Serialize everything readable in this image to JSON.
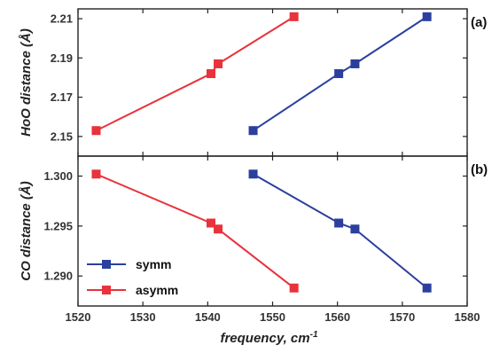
{
  "chart_data": {
    "type": "line",
    "x_axis": {
      "label": "frequency, cm",
      "label_superscript": "-1",
      "range": [
        1520,
        1580
      ],
      "ticks": [
        "1520",
        "1530",
        "1540",
        "1550",
        "1560",
        "1570",
        "1580"
      ]
    },
    "panels": [
      {
        "id": "a",
        "panel_label": "(a)",
        "ylabel": "HoO distance (Å)",
        "ylim": [
          2.14,
          2.215
        ],
        "yticks": [
          "2.15",
          "2.17",
          "2.19",
          "2.21"
        ],
        "series": [
          {
            "name": "symm",
            "color": "#2b3f9e",
            "points": [
              [
                1547,
                2.153
              ],
              [
                1560.2,
                2.182
              ],
              [
                1562.7,
                2.187
              ],
              [
                1573.8,
                2.211
              ]
            ]
          },
          {
            "name": "asymm",
            "color": "#e8323c",
            "points": [
              [
                1522.8,
                2.153
              ],
              [
                1540.5,
                2.182
              ],
              [
                1541.6,
                2.187
              ],
              [
                1553.3,
                2.211
              ]
            ]
          }
        ]
      },
      {
        "id": "b",
        "panel_label": "(b)",
        "ylabel": "CO distance (Å)",
        "ylim": [
          1.287,
          1.302
        ],
        "yticks": [
          "1.290",
          "1.295",
          "1.300"
        ],
        "series": [
          {
            "name": "symm",
            "color": "#2b3f9e",
            "points": [
              [
                1547,
                1.3002
              ],
              [
                1560.2,
                1.2953
              ],
              [
                1562.7,
                1.2947
              ],
              [
                1573.8,
                1.2888
              ]
            ]
          },
          {
            "name": "asymm",
            "color": "#e8323c",
            "points": [
              [
                1522.8,
                1.3002
              ],
              [
                1540.5,
                1.2953
              ],
              [
                1541.6,
                1.2947
              ],
              [
                1553.3,
                1.2888
              ]
            ]
          }
        ]
      }
    ],
    "legend": {
      "position": "bottom-left of panel (b)",
      "entries": [
        {
          "name": "symm",
          "color": "#2b3f9e"
        },
        {
          "name": "asymm",
          "color": "#e8323c"
        }
      ]
    }
  }
}
